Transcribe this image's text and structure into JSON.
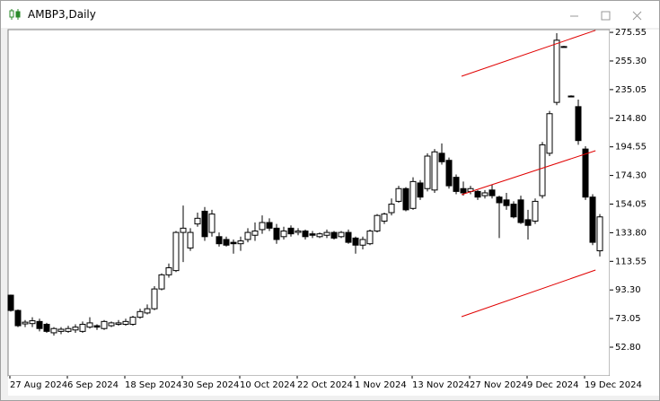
{
  "chart_data": {
    "type": "candlestick",
    "title": "AMBP3,Daily",
    "categories": [
      "27 Aug 2024",
      null,
      null,
      null,
      null,
      null,
      null,
      null,
      "6 Sep 2024",
      null,
      null,
      null,
      null,
      null,
      null,
      null,
      "18 Sep 2024",
      null,
      null,
      null,
      null,
      null,
      null,
      null,
      "30 Sep 2024",
      null,
      null,
      null,
      null,
      null,
      null,
      null,
      "10 Oct 2024",
      null,
      null,
      null,
      null,
      null,
      null,
      null,
      "22 Oct 2024",
      null,
      null,
      null,
      null,
      null,
      null,
      null,
      "1 Nov 2024",
      null,
      null,
      null,
      null,
      null,
      null,
      null,
      "13 Nov 2024",
      null,
      null,
      null,
      null,
      null,
      null,
      null,
      "27 Nov 2024",
      null,
      null,
      null,
      null,
      null,
      null,
      null,
      "9 Dec 2024",
      null,
      null,
      null,
      null,
      null,
      null,
      null,
      "19 Dec 2024",
      null,
      null
    ],
    "open": [
      89.6,
      78.8,
      69.3,
      69.5,
      71,
      69,
      63,
      64,
      64,
      65,
      64,
      67,
      68,
      66,
      68,
      69,
      69,
      69,
      74,
      77,
      80,
      94,
      104,
      107,
      134,
      123,
      140,
      149,
      134,
      131,
      129,
      127,
      126,
      129,
      132,
      136,
      141,
      137,
      131,
      137,
      134,
      135,
      133,
      131,
      132,
      134,
      131,
      134,
      130,
      125,
      126,
      135,
      142,
      148,
      156,
      165,
      151,
      169,
      165,
      164,
      190,
      185,
      173,
      165,
      163,
      163,
      160,
      164,
      159,
      157,
      154,
      157,
      143,
      142,
      160,
      190,
      226,
      265.5,
      230.5,
      223,
      193,
      159,
      121
    ],
    "high": [
      90,
      79.5,
      72,
      74,
      73,
      70,
      67,
      67,
      68,
      69,
      71,
      74,
      69,
      72,
      71,
      72,
      73,
      75,
      80,
      83,
      96,
      105,
      112,
      135,
      153,
      137,
      148,
      152,
      150,
      134,
      131,
      129,
      131,
      137,
      141,
      146,
      144,
      140,
      138,
      139,
      137,
      136,
      135,
      134,
      136,
      135,
      135,
      136,
      131,
      131,
      136,
      147,
      148,
      158,
      167,
      166,
      173,
      171,
      190,
      193,
      197,
      187,
      175,
      170,
      167,
      164,
      164,
      168,
      160,
      162,
      156,
      160,
      150,
      158,
      198,
      220,
      275,
      266,
      231,
      228,
      195,
      161,
      147
    ],
    "low": [
      78,
      67,
      67,
      67,
      64,
      63,
      61,
      62,
      63,
      63,
      63,
      66,
      65,
      65,
      67,
      68,
      68,
      68,
      73,
      76,
      79,
      93,
      102,
      106,
      113,
      121,
      138,
      128,
      131,
      124,
      124,
      119,
      121,
      127,
      128,
      133,
      135,
      126,
      129,
      131,
      132,
      129,
      130,
      130,
      130,
      129,
      130,
      126,
      119,
      122,
      125,
      134,
      140,
      146,
      155,
      149,
      150,
      157,
      163,
      162,
      182,
      165,
      161,
      160,
      161,
      157,
      158,
      158,
      130,
      150,
      144,
      140,
      129,
      140,
      158,
      188,
      224,
      265,
      230,
      196,
      157,
      125,
      117
    ],
    "close": [
      78.8,
      68,
      70.5,
      71.5,
      66,
      64,
      66,
      65.5,
      66,
      67,
      69,
      70,
      67,
      71,
      70,
      70,
      71,
      74,
      78,
      80,
      94,
      104,
      109,
      134,
      137,
      134,
      144,
      131,
      147,
      126,
      125,
      126,
      128,
      134,
      135,
      141,
      137,
      129,
      135,
      133,
      135,
      131,
      132,
      133,
      134,
      130,
      134,
      127,
      125,
      129,
      135,
      146,
      147,
      154,
      165,
      150,
      170,
      159,
      188,
      191,
      184,
      167,
      163,
      162,
      165,
      159,
      162,
      160,
      155,
      153,
      145,
      141,
      139,
      156,
      196,
      218,
      270,
      265.2,
      230.2,
      199,
      159,
      127,
      145
    ],
    "colors": {
      "up": "#ffffff",
      "down": "#000000",
      "outline": "#000000",
      "channel": "#e00000"
    },
    "channel": {
      "x": [
        62.75,
        81.4
      ],
      "lines": [
        [
          244.5,
          277
        ],
        [
          160.7,
          191.8
        ],
        [
          74.4,
          107.4
        ]
      ]
    },
    "ylim": [
      32.5,
      277.5
    ],
    "yticks": [
      275.55,
      {
        "value": 255.3,
        "label": "255.30"
      },
      235.05,
      {
        "value": 214.8,
        "label": "214.80"
      },
      194.55,
      {
        "value": 174.3,
        "label": "174.30"
      },
      154.05,
      {
        "value": 133.8,
        "label": "133.80"
      },
      113.55,
      {
        "value": 93.3,
        "label": "93.30"
      },
      73.05,
      {
        "value": 52.8,
        "label": "52.80"
      }
    ]
  }
}
